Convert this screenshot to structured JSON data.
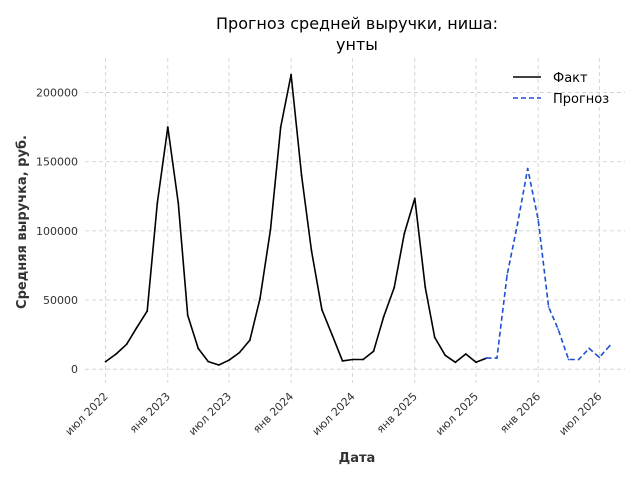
{
  "chart_data": {
    "type": "line",
    "title_lines": [
      "Прогноз средней выручки, ниша:",
      "унты"
    ],
    "xlabel": "Дата",
    "ylabel": "Средняя выручка, руб.",
    "x_ticks": [
      {
        "date": "2022-07-01",
        "label": "июл 2022"
      },
      {
        "date": "2023-01-01",
        "label": "янв 2023"
      },
      {
        "date": "2023-07-01",
        "label": "июл 2023"
      },
      {
        "date": "2024-01-01",
        "label": "янв 2024"
      },
      {
        "date": "2024-07-01",
        "label": "июл 2024"
      },
      {
        "date": "2025-01-01",
        "label": "янв 2025"
      },
      {
        "date": "2025-07-01",
        "label": "июл 2025"
      },
      {
        "date": "2026-01-01",
        "label": "янв 2026"
      },
      {
        "date": "2026-07-01",
        "label": "июл 2026"
      }
    ],
    "y_ticks": [
      0,
      50000,
      100000,
      150000,
      200000
    ],
    "xlim": [
      "2022-05-01",
      "2026-09-15"
    ],
    "ylim": [
      -10000,
      225000
    ],
    "grid": true,
    "legend_position": "top-right",
    "series": [
      {
        "name": "Факт",
        "color": "#000000",
        "style": "solid",
        "x": [
          "2022-07-01",
          "2022-08-01",
          "2022-09-01",
          "2022-10-01",
          "2022-11-01",
          "2022-12-01",
          "2023-01-01",
          "2023-02-01",
          "2023-03-01",
          "2023-04-01",
          "2023-05-01",
          "2023-06-01",
          "2023-07-01",
          "2023-08-01",
          "2023-09-01",
          "2023-10-01",
          "2023-11-01",
          "2023-12-01",
          "2024-01-01",
          "2024-02-01",
          "2024-03-01",
          "2024-04-01",
          "2024-05-01",
          "2024-06-01",
          "2024-07-01",
          "2024-08-01",
          "2024-09-01",
          "2024-10-01",
          "2024-11-01",
          "2024-12-01",
          "2025-01-01",
          "2025-02-01",
          "2025-03-01",
          "2025-04-01",
          "2025-05-01",
          "2025-06-01",
          "2025-07-01",
          "2025-08-01"
        ],
        "y": [
          5500,
          11000,
          18000,
          30000,
          42000,
          120000,
          175000,
          120000,
          39000,
          15000,
          5500,
          3000,
          6500,
          12000,
          21000,
          51000,
          101000,
          175000,
          213000,
          140000,
          86000,
          43000,
          25000,
          6000,
          7000,
          7000,
          13000,
          38000,
          59000,
          98000,
          123500,
          59000,
          23000,
          10000,
          5000,
          11000,
          5000,
          8000
        ]
      },
      {
        "name": "Прогноз",
        "color": "#1f4fd1",
        "style": "dashed",
        "x": [
          "2025-08-01",
          "2025-09-01",
          "2025-10-01",
          "2025-11-01",
          "2025-12-01",
          "2026-01-01",
          "2026-02-01",
          "2026-03-01",
          "2026-04-01",
          "2026-05-01",
          "2026-06-01",
          "2026-07-01",
          "2026-08-01"
        ],
        "y": [
          8000,
          8000,
          68000,
          105000,
          145000,
          108000,
          45000,
          29000,
          7000,
          7000,
          15000,
          8500,
          17000
        ]
      }
    ]
  }
}
